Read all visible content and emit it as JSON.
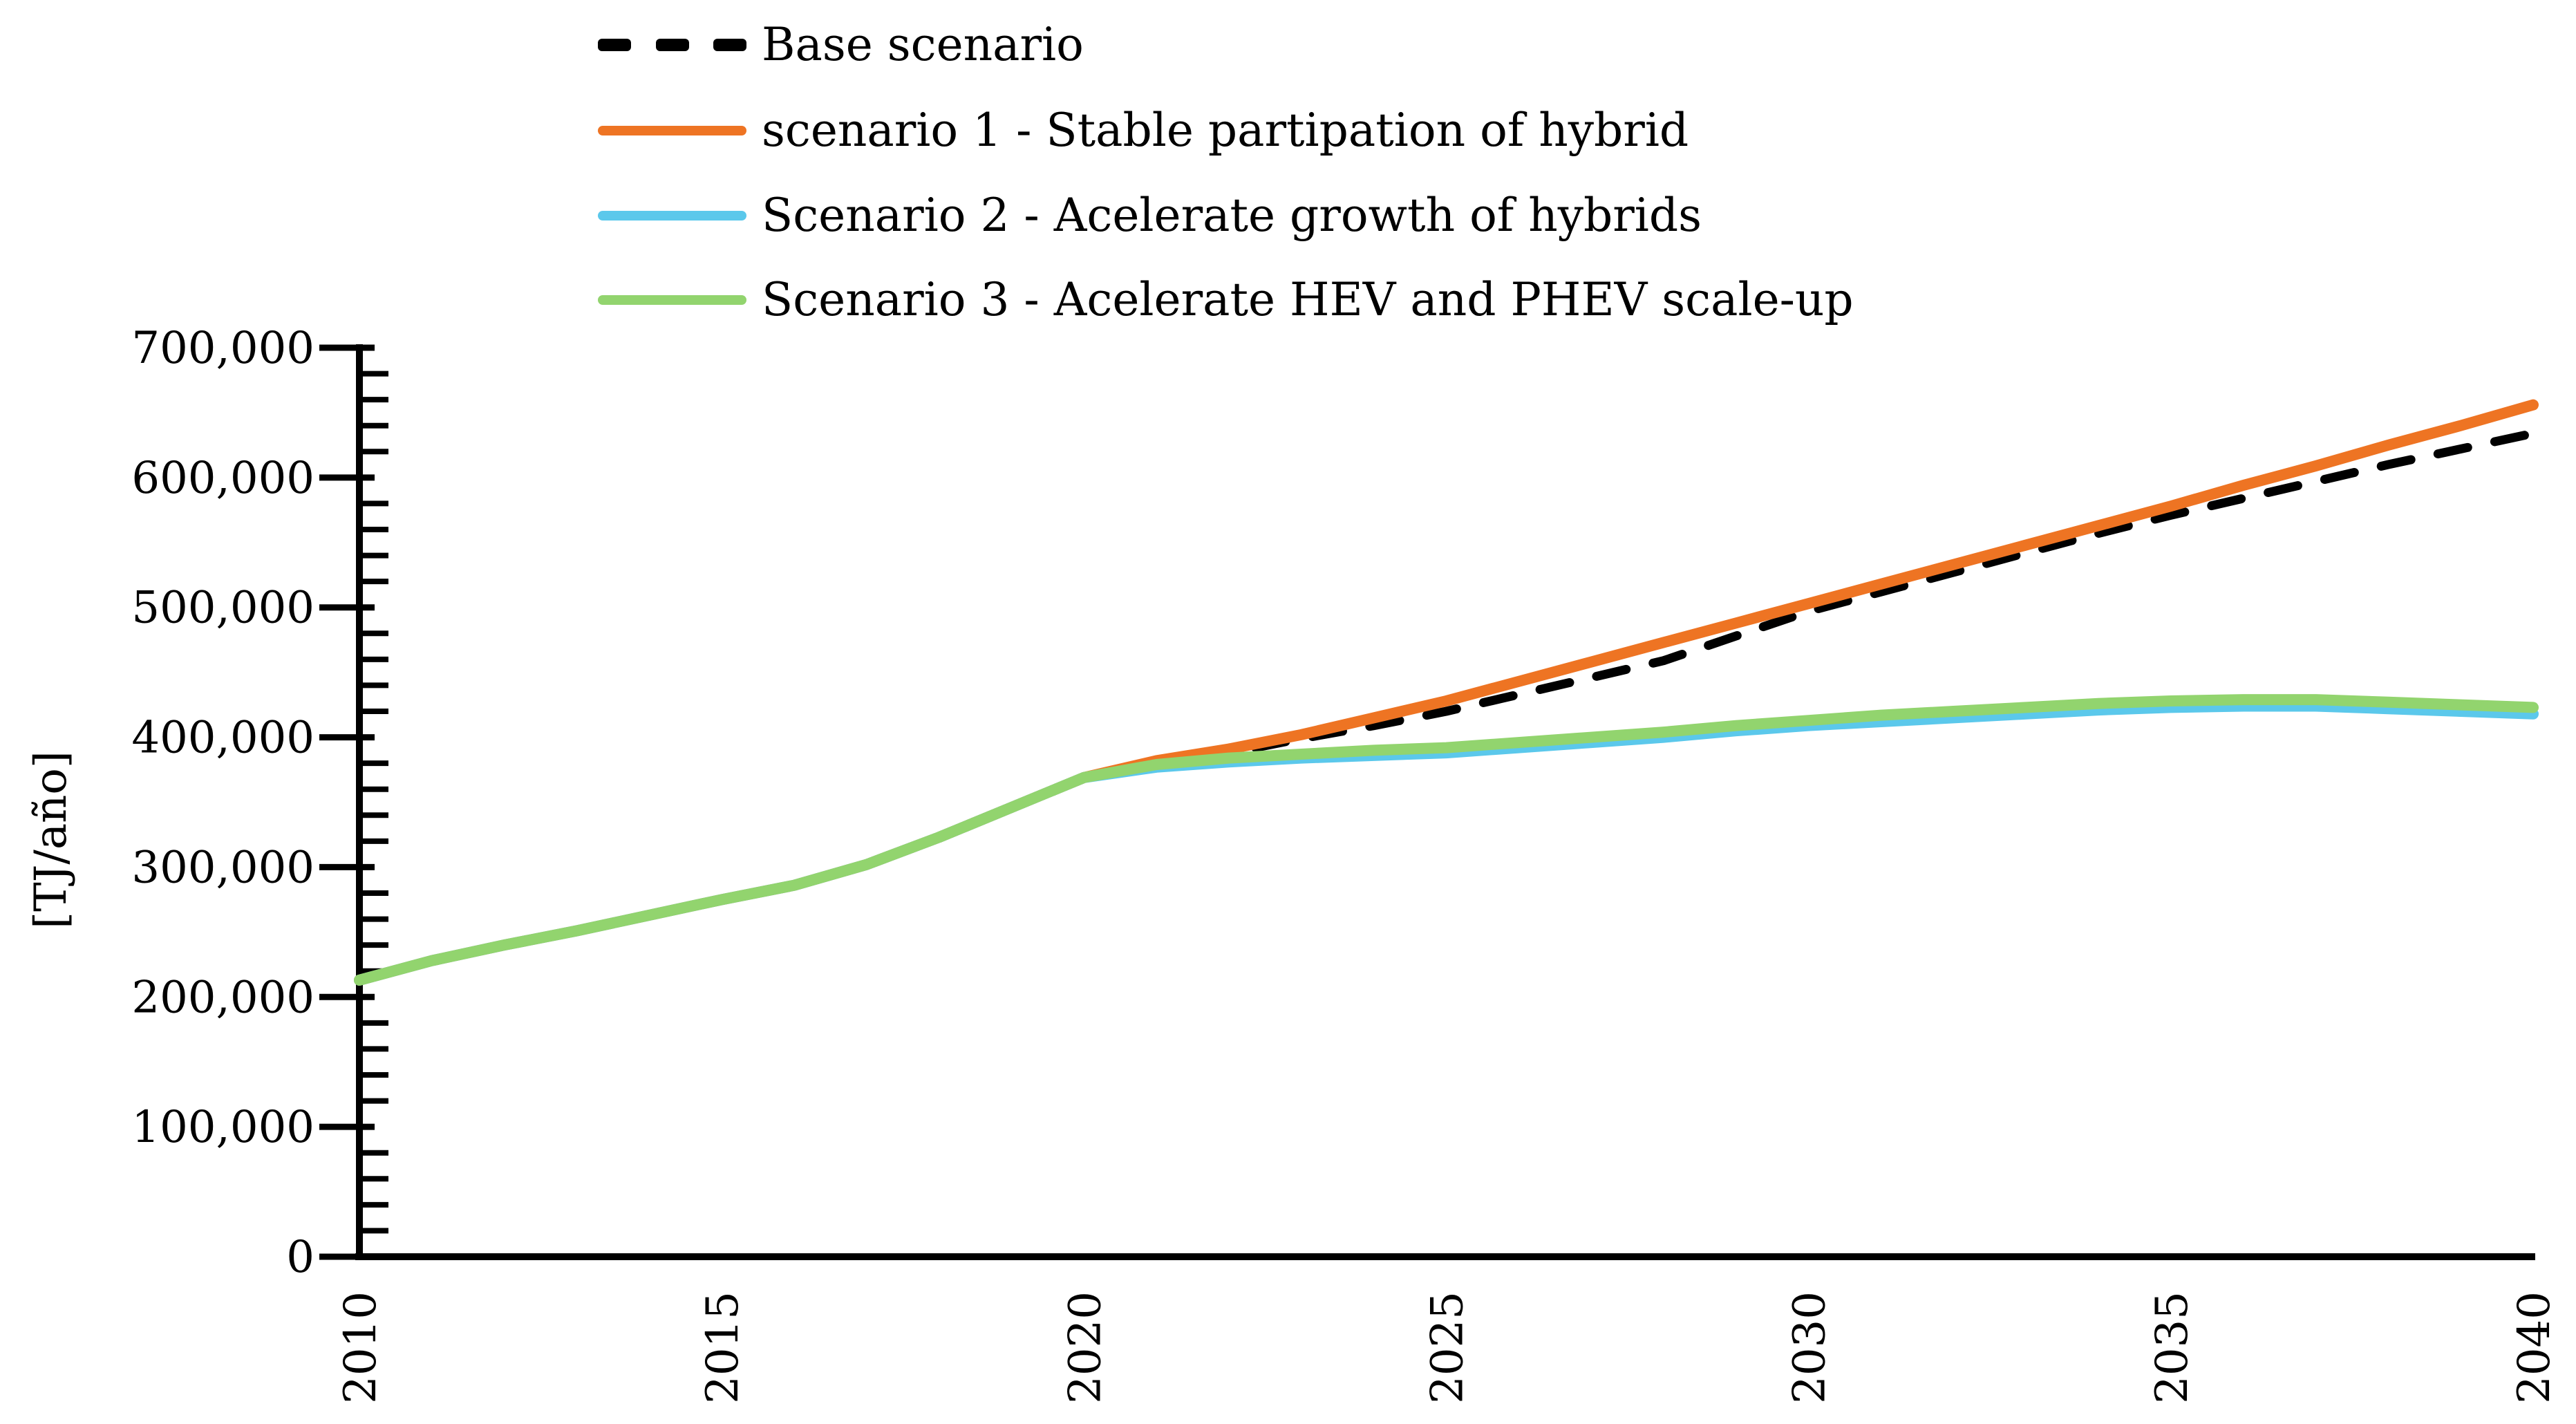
{
  "chart_data": {
    "type": "line",
    "x": [
      2010,
      2011,
      2012,
      2013,
      2014,
      2015,
      2016,
      2017,
      2018,
      2019,
      2020,
      2021,
      2022,
      2023,
      2024,
      2025,
      2026,
      2027,
      2028,
      2029,
      2030,
      2031,
      2032,
      2033,
      2034,
      2035,
      2036,
      2037,
      2038,
      2039,
      2040
    ],
    "x_tick_labels": [
      "2010",
      "2015",
      "2020",
      "2025",
      "2030",
      "2035",
      "2040"
    ],
    "x_tick_years": [
      2010,
      2015,
      2020,
      2025,
      2030,
      2035,
      2040
    ],
    "y_axis": {
      "label": "[TJ/año]",
      "min": 0,
      "max": 700000,
      "major_step": 100000,
      "minor_step": 20000,
      "tick_labels": [
        "0",
        "100,000",
        "200,000",
        "300,000",
        "400,000",
        "500,000",
        "600,000",
        "700,000"
      ]
    },
    "grid": "off",
    "legend_position": "top-left",
    "series": [
      {
        "name": "Base scenario",
        "color": "#000000",
        "style": "dashed",
        "values": [
          213000,
          228000,
          240000,
          251000,
          263000,
          275000,
          286000,
          302000,
          323000,
          346000,
          369000,
          380000,
          388000,
          399000,
          409000,
          420000,
          433000,
          446000,
          459000,
          478000,
          497000,
          512000,
          527000,
          542000,
          557000,
          571000,
          584000,
          597000,
          610000,
          622000,
          634000
        ]
      },
      {
        "name": "scenario 1 - Stable partipation of hybrid",
        "color": "#EE7423",
        "style": "solid",
        "values": [
          213000,
          228000,
          240000,
          251000,
          263000,
          275000,
          286000,
          302000,
          323000,
          346000,
          369000,
          382000,
          391000,
          402000,
          415000,
          428000,
          443000,
          458000,
          473000,
          488000,
          503000,
          518000,
          533000,
          548000,
          563000,
          578000,
          594000,
          609000,
          625000,
          640000,
          656000
        ]
      },
      {
        "name": "Scenario 2 - Acelerate growth of hybrids",
        "color": "#5BC8EB",
        "style": "solid",
        "values": [
          213000,
          228000,
          240000,
          251000,
          263000,
          275000,
          286000,
          302000,
          323000,
          346000,
          369000,
          377000,
          381000,
          384000,
          386000,
          388000,
          392000,
          396000,
          400000,
          405000,
          409000,
          412000,
          415000,
          418000,
          421000,
          423000,
          424000,
          424000,
          422000,
          420000,
          418000
        ]
      },
      {
        "name": "Scenario 3 - Acelerate HEV and PHEV scale-up",
        "color": "#92D46E",
        "style": "solid",
        "values": [
          213000,
          228000,
          240000,
          251000,
          263000,
          275000,
          286000,
          302000,
          323000,
          346000,
          369000,
          379000,
          384000,
          387000,
          390000,
          392000,
          396000,
          400000,
          404000,
          409000,
          413000,
          417000,
          420000,
          423000,
          426000,
          428000,
          429000,
          429000,
          427000,
          425000,
          423000
        ]
      }
    ]
  }
}
